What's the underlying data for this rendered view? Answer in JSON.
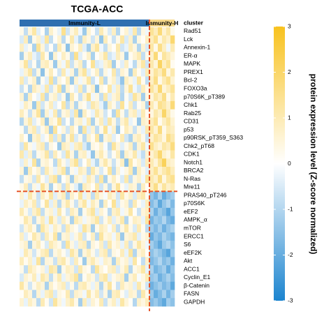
{
  "chart_data": {
    "type": "heatmap",
    "title": "TCGA-ACC",
    "annotation_label": "cluster",
    "groups": [
      {
        "name": "Immunity-L",
        "color": "#2f6fb0",
        "columns": 31
      },
      {
        "name": "Immunity-H",
        "color": "#f6d98a",
        "columns": 6
      }
    ],
    "rows": [
      "Rad51",
      "Lck",
      "Annexin-1",
      "ER-α",
      "MAPK",
      "PREX1",
      "Bcl-2",
      "FOXO3a",
      "p70S6K_pT389",
      "Chk1",
      "Rab25",
      "CD31",
      "p53",
      "p90RSK_pT359_S363",
      "Chk2_pT68",
      "CDK1",
      "Notch1",
      "BRCA2",
      "N-Ras",
      "Mre11",
      "PRAS40_pT246",
      "p70S6K",
      "eEF2",
      "AMPK_α",
      "mTOR",
      "ERCC1",
      "S6",
      "eEF2K",
      "Akt",
      "ACC1",
      "Cyclin_E1",
      "β-Catenin",
      "FASN",
      "GAPDH"
    ],
    "row_split": 20,
    "values": [
      [
        0.3,
        -0.8,
        0.5,
        1.2,
        -0.4,
        0.1,
        -1.1,
        0.7,
        0.2,
        -0.3,
        1.5,
        -0.6,
        0.4,
        0.9,
        -0.2,
        -1.3,
        0.6,
        0.1,
        -0.7,
        1.0,
        0.3,
        -0.5,
        0.8,
        -1.0,
        0.2,
        0.6,
        -0.4,
        1.1,
        -0.9,
        0.4,
        -0.2,
        1.4,
        0.9,
        1.8,
        0.6,
        1.2,
        0.3
      ],
      [
        -0.5,
        0.9,
        -1.2,
        0.3,
        0.7,
        -0.4,
        1.3,
        -0.8,
        0.1,
        0.6,
        -0.9,
        0.2,
        1.1,
        -0.3,
        -1.0,
        0.8,
        0.4,
        -0.6,
        0.5,
        -1.4,
        0.9,
        0.2,
        -0.7,
        0.3,
        1.2,
        -0.5,
        0.7,
        -1.1,
        0.4,
        0.1,
        0.8,
        0.9,
        1.5,
        0.4,
        1.1,
        0.7,
        1.9
      ],
      [
        0.8,
        -0.3,
        0.2,
        -1.1,
        1.4,
        0.5,
        -0.6,
        0.1,
        -0.9,
        1.0,
        0.3,
        -1.5,
        0.6,
        0.2,
        0.9,
        -0.4,
        -1.2,
        0.7,
        1.3,
        -0.2,
        -0.8,
        0.5,
        0.1,
        1.1,
        -0.6,
        -0.3,
        0.9,
        0.4,
        -1.0,
        0.6,
        -0.5,
        1.2,
        0.3,
        1.6,
        0.8,
        -0.2,
        1.0
      ],
      [
        -1.2,
        0.4,
        0.9,
        -0.3,
        -0.7,
        1.1,
        0.2,
        -1.4,
        0.6,
        -0.1,
        0.8,
        0.3,
        -0.9,
        1.5,
        -0.4,
        0.2,
        0.7,
        -1.1,
        0.1,
        0.5,
        1.2,
        -0.6,
        -0.3,
        0.9,
        0.4,
        -1.3,
        0.2,
        0.6,
        1.0,
        -0.8,
        0.3,
        0.7,
        1.8,
        0.2,
        1.3,
        0.9,
        0.5
      ],
      [
        0.4,
        1.3,
        -0.6,
        0.2,
        -1.0,
        0.7,
        0.9,
        0.3,
        -1.3,
        0.5,
        -0.2,
        1.1,
        -0.7,
        0.4,
        0.8,
        -0.9,
        0.1,
        1.4,
        -0.5,
        -0.3,
        0.6,
        1.0,
        -1.2,
        0.2,
        -0.4,
        0.8,
        -0.1,
        -0.9,
        0.5,
        1.2,
        -0.6,
        1.1,
        0.5,
        2.1,
        0.8,
        1.4,
        0.2
      ],
      [
        -0.3,
        0.6,
        1.2,
        -0.8,
        0.4,
        -1.5,
        0.3,
        0.9,
        0.1,
        -0.6,
        1.0,
        -0.2,
        0.5,
        -1.1,
        0.7,
        1.3,
        -0.4,
        0.2,
        0.8,
        -0.9,
        0.4,
        -0.1,
        1.1,
        -0.7,
        0.6,
        0.3,
        -1.2,
        0.9,
        0.2,
        -0.4,
        1.0,
        0.6,
        1.3,
        0.9,
        1.7,
        0.4,
        1.1
      ],
      [
        1.0,
        -0.5,
        0.3,
        0.7,
        -1.2,
        0.2,
        -0.4,
        1.4,
        -0.8,
        0.5,
        0.1,
        0.9,
        -1.3,
        0.6,
        -0.2,
        0.4,
        1.2,
        -0.7,
        -0.1,
        1.1,
        -0.9,
        0.3,
        0.7,
        -0.5,
        -1.4,
        0.8,
        0.4,
        -0.3,
        1.3,
        0.2,
        -0.8,
        0.8,
        1.6,
        0.3,
        1.0,
        1.5,
        0.6
      ],
      [
        -0.7,
        0.2,
        -1.0,
        0.9,
        0.5,
        -0.3,
        1.1,
        -0.6,
        0.4,
        1.3,
        -1.1,
        0.6,
        0.2,
        -0.4,
        1.0,
        -0.8,
        0.3,
        0.7,
        -1.5,
        0.4,
        0.1,
        1.2,
        -0.3,
        0.8,
        -0.9,
        0.5,
        1.4,
        -0.2,
        -0.6,
        0.9,
        0.3,
        1.3,
        0.7,
        1.9,
        0.5,
        0.9,
        1.4
      ],
      [
        0.6,
        -1.1,
        0.8,
        0.1,
        -0.3,
        1.2,
        -0.9,
        0.4,
        0.7,
        -0.5,
        0.3,
        -1.3,
        1.0,
        0.2,
        -0.7,
        0.6,
        1.5,
        -0.2,
        0.4,
        -0.8,
        1.1,
        -0.4,
        0.5,
        0.9,
        -1.0,
        0.2,
        -0.5,
        1.3,
        0.7,
        -1.2,
        0.4,
        0.5,
        1.2,
        0.8,
        1.6,
        0.3,
        1.0
      ],
      [
        -0.2,
        0.8,
        0.4,
        -1.3,
        1.0,
        -0.6,
        0.3,
        0.9,
        -0.4,
        0.1,
        1.2,
        -0.8,
        0.6,
        -1.0,
        0.4,
        0.2,
        -0.5,
        1.1,
        0.7,
        -0.3,
        -1.2,
        0.8,
        0.3,
        -0.6,
        1.4,
        -0.1,
        0.9,
        -0.7,
        0.2,
        0.5,
        -1.1,
        1.0,
        0.4,
        1.5,
        1.2,
        0.7,
        1.8
      ],
      [
        0.9,
        0.3,
        -0.7,
        0.5,
        1.3,
        -1.2,
        0.6,
        -0.2,
        1.0,
        -0.9,
        0.4,
        0.7,
        -0.5,
        1.2,
        -1.4,
        0.8,
        0.2,
        -0.3,
        1.1,
        0.5,
        -0.6,
        0.1,
        -1.0,
        1.3,
        0.3,
        -0.8,
        0.6,
        0.9,
        -0.4,
        1.0,
        0.2,
        0.4,
        1.1,
        0.7,
        2.0,
        0.9,
        0.3
      ],
      [
        -1.0,
        0.5,
        1.1,
        -0.4,
        0.2,
        0.8,
        -1.3,
        0.6,
        0.3,
        1.4,
        -0.7,
        0.1,
        -0.9,
        0.5,
        0.7,
        -0.2,
        1.0,
        -1.1,
        0.3,
        0.9,
        -0.5,
        1.2,
        0.4,
        -0.8,
        0.6,
        1.1,
        -0.3,
        0.2,
        -1.4,
        0.7,
        0.5,
        0.9,
        1.4,
        0.2,
        0.8,
        1.3,
        0.6
      ],
      [
        0.2,
        -0.9,
        0.6,
        1.0,
        -0.5,
        0.3,
        0.8,
        -1.2,
        1.3,
        -0.1,
        0.5,
        -0.6,
        0.9,
        0.2,
        -1.1,
        1.2,
        -0.4,
        0.6,
        -0.8,
        0.3,
        1.4,
        -0.2,
        0.7,
        -1.3,
        0.1,
        0.9,
        0.5,
        -0.7,
        0.4,
        -0.3,
        1.1,
        1.2,
        0.6,
        1.7,
        0.3,
        1.0,
        0.8
      ],
      [
        0.7,
        0.1,
        -1.4,
        0.6,
        0.9,
        -0.3,
        0.2,
        1.1,
        -0.6,
        0.8,
        -1.0,
        0.4,
        1.3,
        -0.5,
        0.3,
        -0.9,
        0.7,
        0.2,
        1.2,
        -1.2,
        0.5,
        0.8,
        -0.4,
        0.1,
        1.0,
        -0.6,
        -1.1,
        0.6,
        0.9,
        0.3,
        -0.7,
        0.7,
        1.3,
        1.0,
        0.4,
        1.6,
        1.1
      ],
      [
        -0.6,
        1.2,
        0.3,
        -0.2,
        0.7,
        1.0,
        -0.8,
        0.4,
        0.1,
        -1.3,
        0.9,
        0.6,
        -0.3,
        0.8,
        1.1,
        -0.5,
        -1.2,
        0.4,
        0.2,
        0.7,
        -0.1,
        -0.9,
        1.3,
        0.5,
        -0.4,
        0.3,
        0.8,
        -1.0,
        0.6,
        1.2,
        -0.2,
        1.5,
        0.8,
        0.5,
        1.2,
        0.9,
        1.7
      ],
      [
        1.1,
        -0.4,
        0.7,
        -0.9,
        0.3,
        0.5,
        1.2,
        -0.7,
        0.9,
        0.2,
        -0.5,
        1.3,
        0.4,
        -1.1,
        0.6,
        0.8,
        -0.2,
        -1.4,
        0.5,
        1.0,
        0.3,
        -0.6,
        0.2,
        0.9,
        -1.2,
        0.7,
        0.4,
        1.1,
        -0.3,
        -0.8,
        0.6,
        0.6,
        1.1,
        1.9,
        0.7,
        0.4,
        1.2
      ],
      [
        -0.4,
        0.7,
        -0.2,
        1.3,
        -1.1,
        0.4,
        0.6,
        0.2,
        -0.9,
        1.0,
        0.3,
        -0.4,
        0.8,
        1.4,
        -0.6,
        0.1,
        0.9,
        -0.3,
        -1.0,
        0.5,
        1.1,
        0.4,
        -0.7,
        0.3,
        0.8,
        -1.5,
        1.2,
        0.2,
        0.6,
        -0.5,
        0.9,
        1.0,
        0.5,
        1.3,
        2.2,
        0.8,
        0.6
      ],
      [
        0.5,
        -1.3,
        0.9,
        0.2,
        0.6,
        -0.7,
        1.0,
        0.4,
        -0.3,
        0.7,
        1.2,
        -1.0,
        0.3,
        -0.2,
        0.9,
        0.6,
        -0.8,
        1.1,
        0.4,
        -0.5,
        0.2,
        1.3,
        -0.9,
        0.6,
        -0.1,
        0.4,
        1.0,
        -1.2,
        0.8,
        0.3,
        -0.4,
        0.8,
        1.4,
        0.6,
        1.1,
        1.5,
        0.9
      ],
      [
        -0.8,
        0.3,
        0.5,
        -0.6,
        1.1,
        0.2,
        -0.4,
        0.9,
        1.3,
        -1.0,
        0.1,
        0.6,
        -1.2,
        0.7,
        0.4,
        -0.3,
        1.0,
        0.5,
        -0.7,
        1.2,
        -1.1,
        0.3,
        0.8,
        0.2,
        -0.5,
        1.1,
        -0.8,
        0.4,
        0.7,
        -0.2,
        1.3,
        1.1,
        0.7,
        1.6,
        0.4,
        1.2,
        1.5
      ],
      [
        0.3,
        0.9,
        -0.8,
        0.4,
        -0.2,
        1.3,
        0.5,
        -1.1,
        0.2,
        0.6,
        -0.7,
        1.0,
        0.3,
        -0.4,
        -1.3,
        0.9,
        0.6,
        0.1,
        1.1,
        -0.6,
        0.4,
        -0.9,
        0.5,
        1.4,
        0.2,
        -0.3,
        0.7,
        0.5,
        -1.0,
        0.8,
        0.1,
        0.9,
        1.6,
        0.5,
        1.3,
        0.7,
        1.0
      ],
      [
        0.6,
        -0.2,
        1.1,
        0.4,
        -0.7,
        0.8,
        0.3,
        1.2,
        -0.4,
        0.5,
        0.9,
        -1.0,
        0.7,
        0.2,
        1.3,
        -0.3,
        0.6,
        -0.8,
        1.0,
        0.4,
        -0.1,
        0.9,
        0.5,
        -0.6,
        1.2,
        0.3,
        0.7,
        -0.5,
        0.8,
        1.1,
        0.2,
        -1.4,
        -1.8,
        -1.1,
        -2.0,
        -1.5,
        -1.2
      ],
      [
        -0.3,
        0.8,
        0.4,
        1.0,
        -0.6,
        0.2,
        1.3,
        -0.4,
        0.7,
        -0.9,
        0.5,
        1.1,
        0.3,
        -0.7,
        0.6,
        1.2,
        -0.2,
        0.9,
        0.4,
        -1.1,
        0.8,
        0.1,
        1.4,
        -0.5,
        0.3,
        0.6,
        -0.8,
        1.0,
        0.2,
        -0.3,
        0.9,
        -1.6,
        -1.2,
        -2.1,
        -1.4,
        -1.0,
        -1.7
      ],
      [
        1.0,
        0.3,
        -0.5,
        0.7,
        1.2,
        -0.8,
        0.4,
        0.6,
        -0.3,
        1.1,
        0.2,
        -0.6,
        0.9,
        0.5,
        -1.2,
        0.3,
        0.8,
        1.3,
        -0.4,
        0.6,
        0.2,
        -0.9,
        0.7,
        1.0,
        -0.2,
        0.4,
        1.2,
        0.1,
        -0.7,
        0.5,
        0.8,
        -1.1,
        -1.9,
        -1.3,
        -1.6,
        -2.2,
        -1.4
      ],
      [
        0.2,
        1.1,
        0.6,
        -0.9,
        0.4,
        0.9,
        -0.3,
        1.4,
        0.5,
        -0.5,
        0.8,
        0.3,
        -1.1,
        1.0,
        0.6,
        -0.2,
        0.4,
        0.7,
        1.2,
        -0.6,
        0.3,
        0.9,
        -0.4,
        0.5,
        1.1,
        -1.0,
        0.2,
        0.8,
        0.6,
        -0.3,
        1.3,
        -1.8,
        -1.3,
        -1.5,
        -1.0,
        -1.7,
        -2.0
      ],
      [
        -0.6,
        0.5,
        0.9,
        0.3,
        -1.0,
        1.2,
        0.6,
        -0.2,
        0.8,
        0.4,
        -0.7,
        1.0,
        0.5,
        0.2,
        -0.4,
        1.3,
        0.7,
        -1.2,
        0.3,
        0.9,
        0.6,
        -0.1,
        0.8,
        -0.8,
        0.4,
        1.1,
        0.3,
        -0.5,
        1.0,
        0.2,
        -0.9,
        -1.3,
        -1.7,
        -1.2,
        -1.9,
        -1.4,
        -1.1
      ],
      [
        0.8,
        -0.4,
        0.2,
        1.1,
        0.6,
        -0.7,
        0.9,
        0.3,
        1.2,
        -1.1,
        0.5,
        0.7,
        -0.3,
        0.4,
        1.0,
        -0.6,
        0.2,
        0.8,
        -0.9,
        1.3,
        0.4,
        0.6,
        -0.2,
        0.9,
        -1.3,
        0.5,
        0.7,
        1.1,
        -0.4,
        0.3,
        0.6,
        -2.0,
        -1.4,
        -1.7,
        -1.1,
        -1.5,
        -1.8
      ],
      [
        0.4,
        0.7,
        -1.2,
        0.5,
        0.9,
        0.2,
        -0.5,
        1.0,
        0.6,
        0.3,
        -0.8,
        1.3,
        0.4,
        -0.4,
        0.7,
        0.9,
        -1.0,
        0.5,
        0.2,
        0.8,
        -0.6,
        1.1,
        0.3,
        0.6,
        -0.3,
        0.9,
        -0.7,
        0.4,
        1.2,
        0.5,
        -0.2,
        -1.2,
        -1.6,
        -2.1,
        -1.3,
        -1.0,
        -1.5
      ],
      [
        -0.2,
        1.0,
        0.5,
        -0.6,
        0.3,
        0.8,
        1.1,
        -0.9,
        0.4,
        0.7,
        0.2,
        -0.4,
        1.2,
        0.6,
        -1.1,
        0.5,
        0.9,
        0.3,
        -0.5,
        0.7,
        1.0,
        -0.8,
        0.4,
        0.2,
        0.9,
        -0.3,
        1.3,
        -1.0,
        0.5,
        0.8,
        0.1,
        -1.5,
        -1.1,
        -1.4,
        -1.8,
        -2.2,
        -1.3
      ],
      [
        0.9,
        0.2,
        0.7,
        -0.3,
        1.3,
        -1.0,
        0.5,
        0.4,
        -0.7,
        0.8,
        1.1,
        0.3,
        -0.5,
        0.9,
        0.2,
        -1.3,
        0.6,
        1.0,
        0.4,
        -0.2,
        0.7,
        0.5,
        -1.1,
        0.8,
        0.3,
        0.6,
        -0.4,
        1.2,
        0.1,
        -0.8,
        0.7,
        -1.7,
        -1.4,
        -1.0,
        -1.6,
        -1.3,
        -1.9
      ],
      [
        0.3,
        -0.8,
        1.0,
        0.6,
        0.2,
        0.5,
        -0.4,
        1.2,
        0.9,
        -1.2,
        0.3,
        0.8,
        0.6,
        -0.6,
        1.1,
        0.4,
        0.2,
        -0.9,
        1.3,
        0.5,
        0.1,
        0.7,
        0.9,
        -0.5,
        0.4,
        1.0,
        -1.0,
        0.3,
        0.6,
        1.2,
        -0.3,
        -1.1,
        -1.8,
        -1.5,
        -1.2,
        -2.0,
        -1.4
      ],
      [
        -0.5,
        0.6,
        0.3,
        0.9,
        -0.2,
        1.1,
        0.7,
        -0.8,
        0.4,
        1.0,
        -0.3,
        0.5,
        0.8,
        1.3,
        -1.0,
        0.2,
        0.7,
        0.4,
        -0.6,
        0.9,
        1.2,
        -0.4,
        0.3,
        0.6,
        0.8,
        -1.2,
        0.5,
        0.9,
        -0.1,
        0.4,
        1.0,
        -1.4,
        -1.2,
        -1.9,
        -1.5,
        -1.1,
        -1.6
      ],
      [
        1.2,
        0.4,
        -0.6,
        0.3,
        0.8,
        0.5,
        -1.1,
        0.7,
        0.2,
        0.6,
        0.9,
        -0.5,
        0.3,
        -0.9,
        0.8,
        1.0,
        0.4,
        -0.3,
        0.6,
        -1.0,
        0.5,
        1.3,
        0.2,
        -0.7,
        0.9,
        0.4,
        0.6,
        -0.4,
        1.1,
        0.3,
        -0.6,
        -1.9,
        -1.5,
        -1.2,
        -1.7,
        -1.4,
        -2.1
      ],
      [
        0.1,
        0.9,
        0.5,
        -1.0,
        0.6,
        -0.3,
        0.8,
        1.1,
        -0.5,
        0.4,
        0.2,
        1.0,
        -0.8,
        0.7,
        0.5,
        -0.2,
        1.2,
        0.3,
        0.9,
        -0.6,
        0.4,
        -1.1,
        0.8,
        1.0,
        0.2,
        -0.4,
        0.7,
        0.5,
        -0.9,
        1.1,
        0.3,
        -1.3,
        -2.0,
        -1.6,
        -1.1,
        -1.8,
        -1.2
      ],
      [
        0.6,
        -0.3,
        0.8,
        0.4,
        -0.9,
        1.0,
        0.2,
        -0.6,
        1.3,
        0.5,
        -0.2,
        0.7,
        1.1,
        0.3,
        -1.2,
        0.9,
        -0.4,
        0.6,
        0.2,
        1.0,
        -0.7,
        0.4,
        0.8,
        -0.3,
        1.2,
        0.5,
        0.1,
        -1.0,
        0.7,
        0.4,
        0.9,
        -1.6,
        -1.3,
        -1.7,
        -2.1,
        -1.2,
        -1.5
      ]
    ],
    "colorscale": [
      "#1b84cf",
      "#ffffff",
      "#f8c21e"
    ],
    "zlim": [
      -3,
      3
    ],
    "zticks": [
      -3,
      -2,
      -1,
      0,
      1,
      2,
      3
    ],
    "colorbar_label": "protein expression level (Z-score normalized)",
    "divider_color": "#e6562a"
  }
}
